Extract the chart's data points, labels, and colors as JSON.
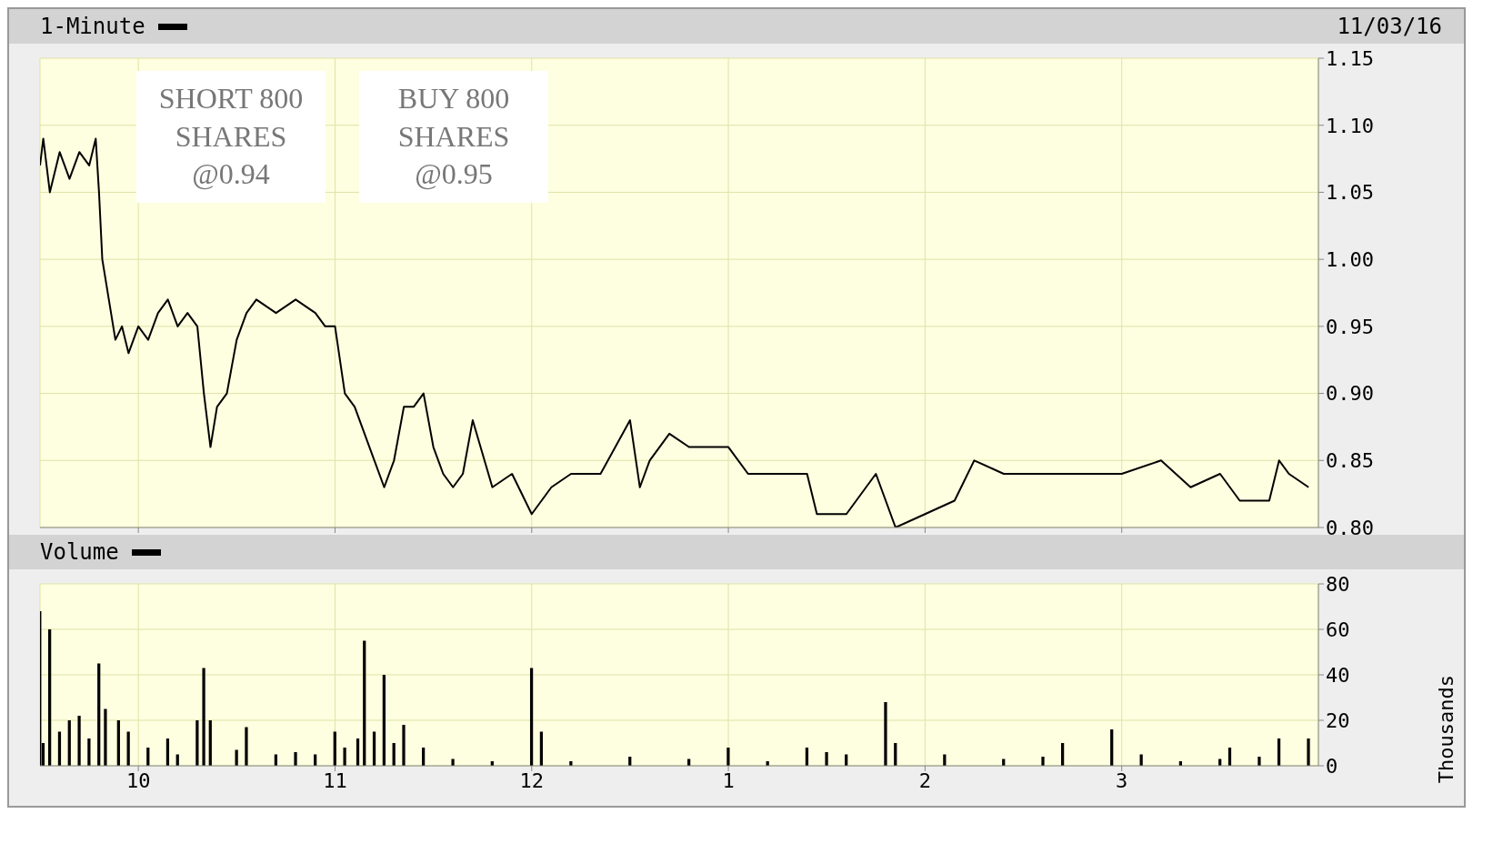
{
  "chart_data": [
    {
      "type": "line",
      "title": "1-Minute",
      "subtitle": "11/03/16",
      "annotations": [
        "SHORT 800 SHARES @0.94",
        "BUY 800 SHARES @0.95"
      ],
      "series": [
        {
          "color": "#000000",
          "x": [
            "--11-03T09:30",
            "--11-03T09:31",
            "--11-03T09:33",
            "--11-03T09:36",
            "--11-03T09:39",
            "--11-03T09:42",
            "--11-03T09:45",
            "--11-03T09:47",
            "--11-03T09:48",
            "--11-03T09:49",
            "--11-03T09:51",
            "--11-03T09:53",
            "--11-03T09:55",
            "--11-03T09:57",
            "--11-03T10:00",
            "--11-03T10:03",
            "--11-03T10:06",
            "--11-03T10:09",
            "--11-03T10:12",
            "--11-03T10:15",
            "--11-03T10:18",
            "--11-03T10:20",
            "--11-03T10:22",
            "--11-03T10:24",
            "--11-03T10:27",
            "--11-03T10:30",
            "--11-03T10:33",
            "--11-03T10:36",
            "--11-03T10:42",
            "--11-03T10:48",
            "--11-03T10:54",
            "--11-03T10:57",
            "--11-03T11:00",
            "--11-03T11:03",
            "--11-03T11:06",
            "--11-03T11:09",
            "--11-03T11:12",
            "--11-03T11:15",
            "--11-03T11:18",
            "--11-03T11:21",
            "--11-03T11:24",
            "--11-03T11:27",
            "--11-03T11:30",
            "--11-03T11:33",
            "--11-03T11:36",
            "--11-03T11:39",
            "--11-03T11:42",
            "--11-03T11:48",
            "--11-03T11:54",
            "--11-03T12:00",
            "--11-03T12:06",
            "--11-03T12:12",
            "--11-03T12:21",
            "--11-03T12:30",
            "--11-03T12:33",
            "--11-03T12:36",
            "--11-03T12:42",
            "--11-03T12:48",
            "--11-03T12:54",
            "--11-03T13:00",
            "--11-03T13:06",
            "--11-03T13:12",
            "--11-03T13:18",
            "--11-03T13:24",
            "--11-03T13:27",
            "--11-03T13:36",
            "--11-03T13:45",
            "--11-03T13:51",
            "--11-03T14:00",
            "--11-03T14:09",
            "--11-03T14:15",
            "--11-03T14:24",
            "--11-03T14:36",
            "--11-03T14:48",
            "--11-03T15:00",
            "--11-03T15:12",
            "--11-03T15:21",
            "--11-03T15:30",
            "--11-03T15:36",
            "--11-03T15:45",
            "--11-03T15:48",
            "--11-03T15:51",
            "--11-03T15:57"
          ],
          "values": [
            1.07,
            1.09,
            1.05,
            1.08,
            1.06,
            1.08,
            1.07,
            1.09,
            1.05,
            1.0,
            0.97,
            0.94,
            0.95,
            0.93,
            0.95,
            0.94,
            0.96,
            0.97,
            0.95,
            0.96,
            0.95,
            0.9,
            0.86,
            0.89,
            0.9,
            0.94,
            0.96,
            0.97,
            0.96,
            0.97,
            0.96,
            0.95,
            0.95,
            0.9,
            0.89,
            0.87,
            0.85,
            0.83,
            0.85,
            0.89,
            0.89,
            0.9,
            0.86,
            0.84,
            0.83,
            0.84,
            0.88,
            0.83,
            0.84,
            0.81,
            0.83,
            0.84,
            0.84,
            0.88,
            0.83,
            0.85,
            0.87,
            0.86,
            0.86,
            0.86,
            0.84,
            0.84,
            0.84,
            0.84,
            0.81,
            0.81,
            0.84,
            0.8,
            0.81,
            0.82,
            0.85,
            0.84,
            0.84,
            0.84,
            0.84,
            0.85,
            0.83,
            0.84,
            0.82,
            0.82,
            0.85,
            0.84,
            0.83
          ]
        }
      ],
      "xlim": [
        "--11-03T09:30",
        "--11-03T16:00"
      ],
      "xticks": [
        "--11-03T10:00",
        "--11-03T11:00",
        "--11-03T12:00",
        "--11-03T13:00",
        "--11-03T14:00",
        "--11-03T15:00"
      ],
      "ylim": [
        0.8,
        1.15
      ],
      "yticks": [
        {
          "value": 0.8,
          "label": "0.80"
        },
        {
          "value": 0.85,
          "label": "0.85"
        },
        {
          "value": 0.9,
          "label": "0.90"
        },
        {
          "value": 0.95,
          "label": "0.95"
        },
        {
          "value": 1.0,
          "label": "1.00"
        },
        {
          "value": 1.05,
          "label": "1.05"
        },
        {
          "value": 1.1,
          "label": "1.10"
        },
        {
          "value": 1.15,
          "label": "1.15"
        }
      ],
      "grid": true,
      "tick_labels": "y",
      "line_style": "solid",
      "marker": "none"
    },
    {
      "type": "bar",
      "title": "Volume",
      "ylabel": "Thousands",
      "series": [
        {
          "color": "#000000",
          "x": [
            "--11-03T09:30",
            "--11-03T09:31",
            "--11-03T09:33",
            "--11-03T09:36",
            "--11-03T09:39",
            "--11-03T09:42",
            "--11-03T09:45",
            "--11-03T09:48",
            "--11-03T09:50",
            "--11-03T09:54",
            "--11-03T09:57",
            "--11-03T10:03",
            "--11-03T10:09",
            "--11-03T10:12",
            "--11-03T10:18",
            "--11-03T10:20",
            "--11-03T10:22",
            "--11-03T10:30",
            "--11-03T10:33",
            "--11-03T10:42",
            "--11-03T10:48",
            "--11-03T10:54",
            "--11-03T11:00",
            "--11-03T11:03",
            "--11-03T11:07",
            "--11-03T11:09",
            "--11-03T11:12",
            "--11-03T11:15",
            "--11-03T11:18",
            "--11-03T11:21",
            "--11-03T11:27",
            "--11-03T11:36",
            "--11-03T11:48",
            "--11-03T12:00",
            "--11-03T12:03",
            "--11-03T12:12",
            "--11-03T12:30",
            "--11-03T12:48",
            "--11-03T13:00",
            "--11-03T13:12",
            "--11-03T13:24",
            "--11-03T13:30",
            "--11-03T13:36",
            "--11-03T13:48",
            "--11-03T13:51",
            "--11-03T14:06",
            "--11-03T14:24",
            "--11-03T14:36",
            "--11-03T14:42",
            "--11-03T14:57",
            "--11-03T15:06",
            "--11-03T15:18",
            "--11-03T15:30",
            "--11-03T15:33",
            "--11-03T15:42",
            "--11-03T15:48",
            "--11-03T15:57"
          ],
          "values": [
            68,
            10,
            60,
            15,
            20,
            22,
            12,
            45,
            25,
            20,
            15,
            8,
            12,
            5,
            20,
            43,
            20,
            7,
            17,
            5,
            6,
            5,
            15,
            8,
            12,
            55,
            15,
            40,
            10,
            18,
            8,
            3,
            2,
            43,
            15,
            2,
            4,
            3,
            8,
            2,
            8,
            6,
            5,
            28,
            10,
            5,
            3,
            4,
            10,
            16,
            5,
            2,
            3,
            8,
            4,
            12,
            12
          ]
        }
      ],
      "xlim": [
        "--11-03T09:30",
        "--11-03T16:00"
      ],
      "xticks": [
        {
          "value": "--11-03T10:00",
          "label": "10"
        },
        {
          "value": "--11-03T11:00",
          "label": "11"
        },
        {
          "value": "--11-03T12:00",
          "label": "12"
        },
        {
          "value": "--11-03T13:00",
          "label": "1"
        },
        {
          "value": "--11-03T14:00",
          "label": "2"
        },
        {
          "value": "--11-03T15:00",
          "label": "3"
        }
      ],
      "ylim": [
        0,
        80
      ],
      "yticks": [
        0,
        20,
        40,
        60,
        80
      ],
      "grid": true
    }
  ]
}
